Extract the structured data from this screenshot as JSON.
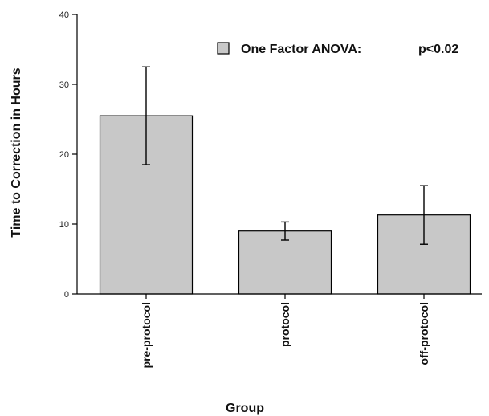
{
  "chart_data": {
    "type": "bar",
    "categories": [
      "pre-protocol",
      "protocol",
      "off-protocol"
    ],
    "values": [
      25.5,
      9.0,
      11.3
    ],
    "error_plus": [
      7.0,
      1.3,
      4.2
    ],
    "error_minus": [
      7.0,
      1.3,
      4.2
    ],
    "xlabel": "Group",
    "ylabel": "Time to Correction in Hours",
    "ylim": [
      0,
      40
    ],
    "yticks": [
      0,
      10,
      20,
      30,
      40
    ],
    "grid": false,
    "legend": {
      "position": "top-right",
      "label": "One Factor ANOVA:",
      "value": "p<0.02"
    },
    "colors": {
      "bar_fill": "#c8c8c8",
      "bar_stroke": "#000000",
      "axis": "#000000"
    }
  }
}
